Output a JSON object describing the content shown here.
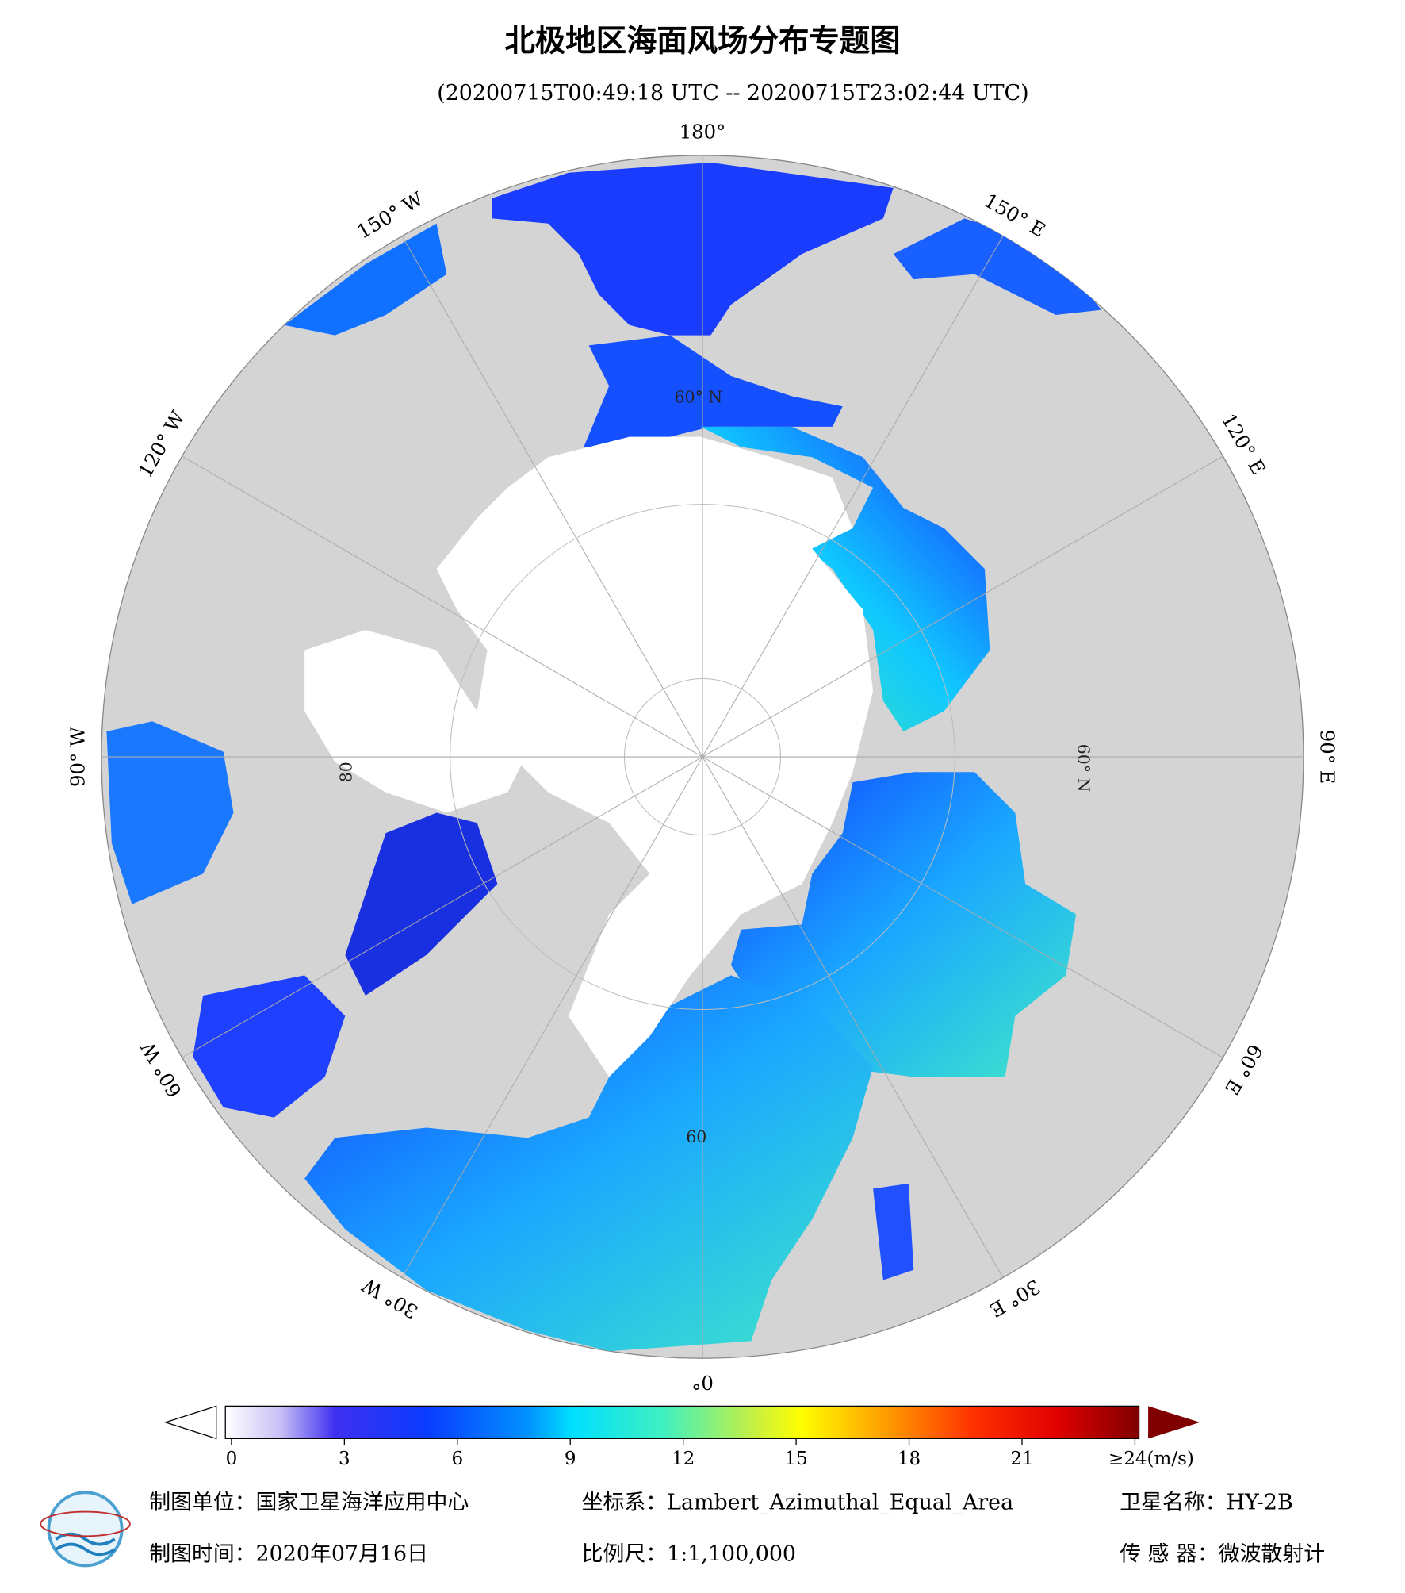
{
  "title": "北极地区海面风场分布专题图",
  "subtitle": "(20200715T00:49:18 UTC -- 20200715T23:02:44 UTC)",
  "map": {
    "lon_labels": [
      {
        "value": 180,
        "label": "180°"
      },
      {
        "value": 150,
        "label": "150° E"
      },
      {
        "value": 120,
        "label": "120° E"
      },
      {
        "value": 90,
        "label": "90° E"
      },
      {
        "value": 60,
        "label": "60° E"
      },
      {
        "value": 30,
        "label": "30° E"
      },
      {
        "value": 0,
        "label": "0°"
      },
      {
        "value": -30,
        "label": "30° W"
      },
      {
        "value": -60,
        "label": "60° W"
      },
      {
        "value": -90,
        "label": "90° W"
      },
      {
        "value": -120,
        "label": "120° W"
      },
      {
        "value": -150,
        "label": "150° W"
      }
    ],
    "lat_labels": [
      "60° N",
      "60° N",
      "60",
      "80"
    ]
  },
  "colorbar": {
    "range": [
      0,
      24
    ],
    "ticks": [
      0,
      3,
      6,
      9,
      12,
      15,
      18,
      21,
      {
        "value": 24,
        "label": "≥24(m/s)"
      }
    ]
  },
  "footer": {
    "unit": "制图单位：国家卫星海洋应用中心",
    "projection": "坐标系：Lambert_Azimuthal_Equal_Area",
    "satellite": "卫星名称：HY-2B",
    "date": "制图时间：2020年07月16日",
    "scale": "比例尺：1:1,100,000",
    "sensor": "传 感 器：微波散射计"
  }
}
